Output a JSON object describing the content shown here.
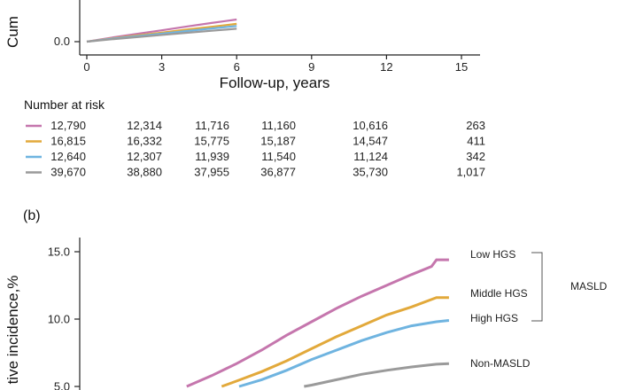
{
  "colors": {
    "low_hgs": "#c576ad",
    "middle_hgs": "#e2a93b",
    "high_hgs": "#6fb4e0",
    "non_masld": "#9a9a9a",
    "axis": "#222222"
  },
  "chart_data": [
    {
      "type": "line",
      "panel": "a",
      "xlabel": "Follow-up, years",
      "ylabel": "Cum",
      "x_ticks": [
        "0",
        "3",
        "6",
        "9",
        "12",
        "15"
      ],
      "y_ticks": [
        "0.0"
      ],
      "xlim": [
        0,
        15.5
      ],
      "series": [
        {
          "key": "low_hgs",
          "x": [
            0,
            1,
            2,
            3,
            4,
            5,
            6
          ],
          "y": [
            0.0,
            0.38,
            0.72,
            1.05,
            1.4,
            1.73,
            2.05
          ]
        },
        {
          "key": "middle_hgs",
          "x": [
            0,
            1,
            2,
            3,
            4,
            5,
            6
          ],
          "y": [
            0.0,
            0.3,
            0.57,
            0.84,
            1.12,
            1.38,
            1.65
          ]
        },
        {
          "key": "high_hgs",
          "x": [
            0,
            1,
            2,
            3,
            4,
            5,
            6
          ],
          "y": [
            0.0,
            0.27,
            0.5,
            0.74,
            0.98,
            1.22,
            1.45
          ]
        },
        {
          "key": "non_masld",
          "x": [
            0,
            1,
            2,
            3,
            4,
            5,
            6
          ],
          "y": [
            0.0,
            0.22,
            0.42,
            0.62,
            0.82,
            1.01,
            1.2
          ]
        }
      ],
      "risk_table": {
        "title": "Number at risk",
        "rows": [
          {
            "key": "low_hgs",
            "values": [
              "12,790",
              "12,314",
              "11,716",
              "11,160",
              "10,616",
              "263"
            ]
          },
          {
            "key": "middle_hgs",
            "values": [
              "16,815",
              "16,332",
              "15,775",
              "15,187",
              "14,547",
              "411"
            ]
          },
          {
            "key": "high_hgs",
            "values": [
              "12,640",
              "12,307",
              "11,939",
              "11,540",
              "11,124",
              "342"
            ]
          },
          {
            "key": "non_masld",
            "values": [
              "39,670",
              "38,880",
              "37,955",
              "36,877",
              "35,730",
              "1,017"
            ]
          }
        ]
      }
    },
    {
      "type": "line",
      "panel": "b",
      "panel_label": "(b)",
      "ylabel": "tive incidence,%",
      "y_ticks": [
        "15.0",
        "10.0",
        "5.0"
      ],
      "xlim": [
        0,
        15.5
      ],
      "bracket_label": "MASLD",
      "series": [
        {
          "key": "low_hgs",
          "name": "Low HGS",
          "x": [
            4,
            5,
            6,
            7,
            8,
            9,
            10,
            11,
            12,
            13,
            13.8,
            14,
            14.5
          ],
          "y": [
            5.0,
            5.8,
            6.7,
            7.7,
            8.8,
            9.8,
            10.8,
            11.7,
            12.5,
            13.3,
            13.9,
            14.4,
            14.4
          ]
        },
        {
          "key": "middle_hgs",
          "name": "Middle HGS",
          "x": [
            5.4,
            6,
            7,
            8,
            9,
            10,
            11,
            12,
            13,
            14,
            14.5
          ],
          "y": [
            5.0,
            5.4,
            6.1,
            6.9,
            7.8,
            8.7,
            9.5,
            10.3,
            10.9,
            11.6,
            11.6
          ]
        },
        {
          "key": "high_hgs",
          "name": "High HGS",
          "x": [
            6.1,
            7,
            8,
            9,
            10,
            11,
            12,
            13,
            14,
            14.5
          ],
          "y": [
            5.0,
            5.5,
            6.2,
            7.0,
            7.7,
            8.4,
            9.0,
            9.5,
            9.8,
            9.9
          ]
        },
        {
          "key": "non_masld",
          "name": "Non-MASLD",
          "x": [
            8.7,
            9,
            10,
            11,
            12,
            13,
            14,
            14.5
          ],
          "y": [
            5.0,
            5.1,
            5.5,
            5.9,
            6.2,
            6.45,
            6.65,
            6.7
          ]
        }
      ]
    }
  ]
}
